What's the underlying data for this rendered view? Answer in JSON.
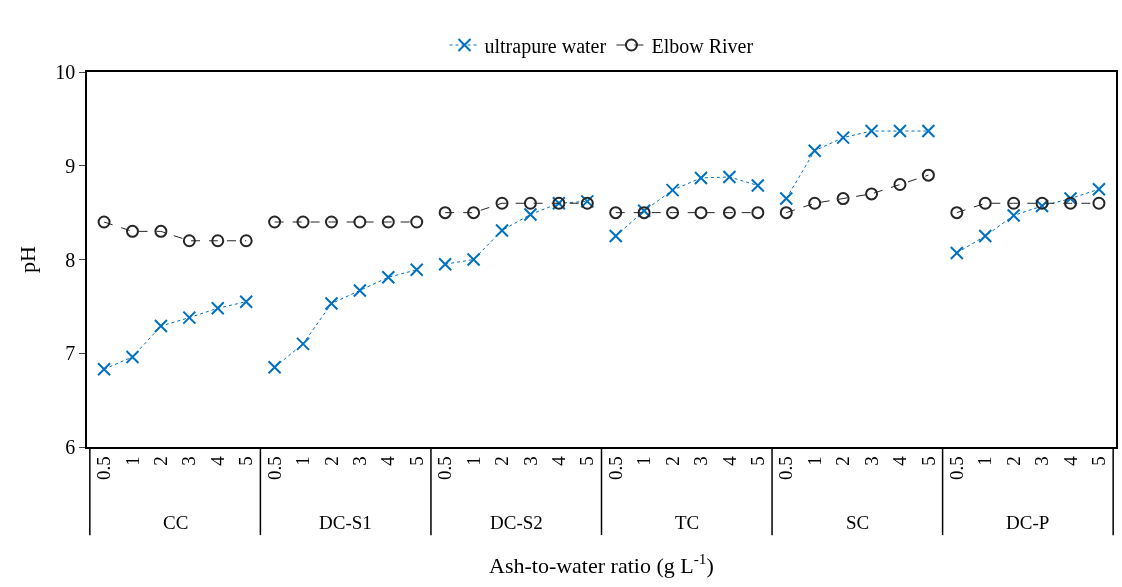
{
  "chart_data": {
    "type": "line",
    "xlabel": "Ash-to-water ratio (g L$^{-1}$)",
    "ylabel": "pH",
    "categories": [
      "0.5",
      "1",
      "2",
      "3",
      "4",
      "5",
      "0.5",
      "1",
      "2",
      "3",
      "4",
      "5",
      "0.5",
      "1",
      "2",
      "3",
      "4",
      "5",
      "0.5",
      "1",
      "2",
      "3",
      "4",
      "5",
      "0.5",
      "1",
      "2",
      "3",
      "4",
      "5",
      "0.5",
      "1",
      "2",
      "3",
      "4",
      "5"
    ],
    "annotations": [
      "CC",
      "DC-S1",
      "DC-S2",
      "TC",
      "SC",
      "DC-P"
    ],
    "series": [
      {
        "name": "ultrapure water",
        "color": "#0070c0",
        "marker": "cross",
        "line_style": "dotted",
        "values": [
          6.83,
          6.96,
          7.29,
          7.38,
          7.48,
          7.55,
          6.85,
          7.1,
          7.53,
          7.67,
          7.81,
          7.89,
          7.95,
          8.0,
          8.31,
          8.48,
          8.6,
          8.62,
          8.25,
          8.52,
          8.74,
          8.87,
          8.88,
          8.79,
          8.65,
          9.16,
          9.3,
          9.37,
          9.37,
          9.37,
          8.07,
          8.25,
          8.47,
          8.57,
          8.65,
          8.75
        ]
      },
      {
        "name": "Elbow River",
        "color": "#262626",
        "marker": "circle",
        "line_style": "dashed",
        "values": [
          8.4,
          8.3,
          8.3,
          8.2,
          8.2,
          8.2,
          8.4,
          8.4,
          8.4,
          8.4,
          8.4,
          8.4,
          8.5,
          8.5,
          8.6,
          8.6,
          8.6,
          8.6,
          8.5,
          8.5,
          8.5,
          8.5,
          8.5,
          8.5,
          8.5,
          8.6,
          8.65,
          8.7,
          8.8,
          8.9,
          8.5,
          8.6,
          8.6,
          8.6,
          8.6,
          8.6
        ]
      }
    ],
    "ylim": [
      6,
      10
    ],
    "yticks": [
      6,
      7,
      8,
      9,
      10
    ],
    "legend": "top"
  }
}
